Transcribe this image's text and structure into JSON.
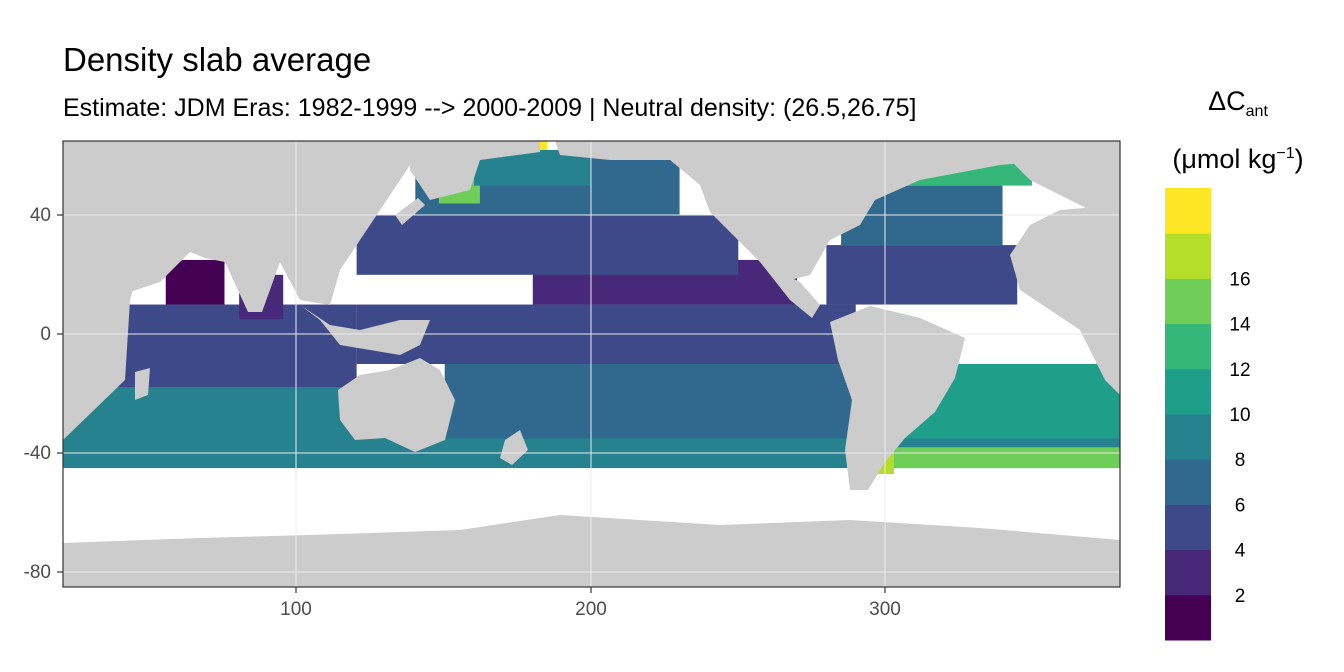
{
  "chart_data": {
    "type": "heatmap",
    "title": "Density slab average",
    "subtitle": "Estimate: JDM Eras: 1982-1999 --> 2000-2009 | Neutral density: (26.5,26.75]",
    "xlabel": "",
    "ylabel": "",
    "xlim": [
      20,
      380
    ],
    "ylim": [
      -85,
      65
    ],
    "x_ticks": [
      100,
      200,
      300
    ],
    "y_ticks": [
      40,
      0,
      -40,
      -80
    ],
    "x_tick_labels": [
      "100",
      "200",
      "300"
    ],
    "y_tick_labels": [
      "40",
      "0",
      "-40",
      "-80"
    ],
    "grid": true,
    "land_color": "#cccccc",
    "no_data_color": "#ffffff",
    "legend": {
      "title_main": "ΔC",
      "title_sub": "ant",
      "unit_prefix": "(μmol kg",
      "unit_sup": "−1",
      "unit_suffix": ")",
      "placement": "right",
      "breaks": [
        2,
        4,
        6,
        8,
        10,
        12,
        14,
        16
      ],
      "break_labels": [
        "2",
        "4",
        "6",
        "8",
        "10",
        "12",
        "14",
        "16"
      ],
      "bins": [
        {
          "range": [
            0,
            2
          ],
          "color": "#440154"
        },
        {
          "range": [
            2,
            4
          ],
          "color": "#482878"
        },
        {
          "range": [
            4,
            6
          ],
          "color": "#3e4989"
        },
        {
          "range": [
            6,
            8
          ],
          "color": "#31688e"
        },
        {
          "range": [
            8,
            10
          ],
          "color": "#26828e"
        },
        {
          "range": [
            10,
            12
          ],
          "color": "#1f9e89"
        },
        {
          "range": [
            12,
            14
          ],
          "color": "#35b779"
        },
        {
          "range": [
            14,
            16
          ],
          "color": "#6ece58"
        },
        {
          "range": [
            16,
            18
          ],
          "color": "#b5de2b"
        },
        {
          "range": [
            18,
            20
          ],
          "color": "#fde725"
        }
      ]
    },
    "regions": [
      {
        "name": "southern-band",
        "value": 9,
        "lon": [
          20,
          380
        ],
        "lat": [
          -45,
          -18
        ]
      },
      {
        "name": "indian-ocean",
        "value": 5,
        "lon": [
          30,
          120
        ],
        "lat": [
          -18,
          10
        ]
      },
      {
        "name": "arabian-sea",
        "value": 1,
        "lon": [
          55,
          75
        ],
        "lat": [
          10,
          25
        ]
      },
      {
        "name": "bay-of-bengal",
        "value": 3,
        "lon": [
          80,
          95
        ],
        "lat": [
          5,
          20
        ]
      },
      {
        "name": "south-pacific",
        "value": 7,
        "lon": [
          150,
          290
        ],
        "lat": [
          -35,
          -10
        ]
      },
      {
        "name": "equatorial-pacific",
        "value": 5,
        "lon": [
          120,
          290
        ],
        "lat": [
          -10,
          10
        ]
      },
      {
        "name": "north-pacific-subtropic",
        "value": 3,
        "lon": [
          180,
          270
        ],
        "lat": [
          10,
          25
        ]
      },
      {
        "name": "north-pacific-mid",
        "value": 5,
        "lon": [
          120,
          250
        ],
        "lat": [
          20,
          40
        ]
      },
      {
        "name": "north-pacific-high",
        "value": 7,
        "lon": [
          140,
          230
        ],
        "lat": [
          40,
          60
        ]
      },
      {
        "name": "kamchatka",
        "value": 15,
        "lon": [
          148,
          162
        ],
        "lat": [
          44,
          58
        ]
      },
      {
        "name": "gulf-of-alaska",
        "value": 9,
        "lon": [
          160,
          200
        ],
        "lat": [
          50,
          62
        ]
      },
      {
        "name": "north-atlantic-subtropic",
        "value": 5,
        "lon": [
          280,
          345
        ],
        "lat": [
          10,
          30
        ]
      },
      {
        "name": "north-atlantic-mid",
        "value": 7,
        "lon": [
          285,
          340
        ],
        "lat": [
          30,
          50
        ]
      },
      {
        "name": "north-atlantic-high",
        "value": 13,
        "lon": [
          300,
          350
        ],
        "lat": [
          50,
          62
        ]
      },
      {
        "name": "south-atlantic",
        "value": 11,
        "lon": [
          300,
          380
        ],
        "lat": [
          -35,
          -10
        ]
      },
      {
        "name": "south-atlantic-high",
        "value": 15,
        "lon": [
          300,
          380
        ],
        "lat": [
          -45,
          -38
        ]
      },
      {
        "name": "patagonia",
        "value": 17,
        "lon": [
          293,
          303
        ],
        "lat": [
          -47,
          -38
        ]
      },
      {
        "name": "aleutian",
        "value": 19,
        "lon": [
          178,
          185
        ],
        "lat": [
          62,
          65
        ]
      }
    ]
  }
}
